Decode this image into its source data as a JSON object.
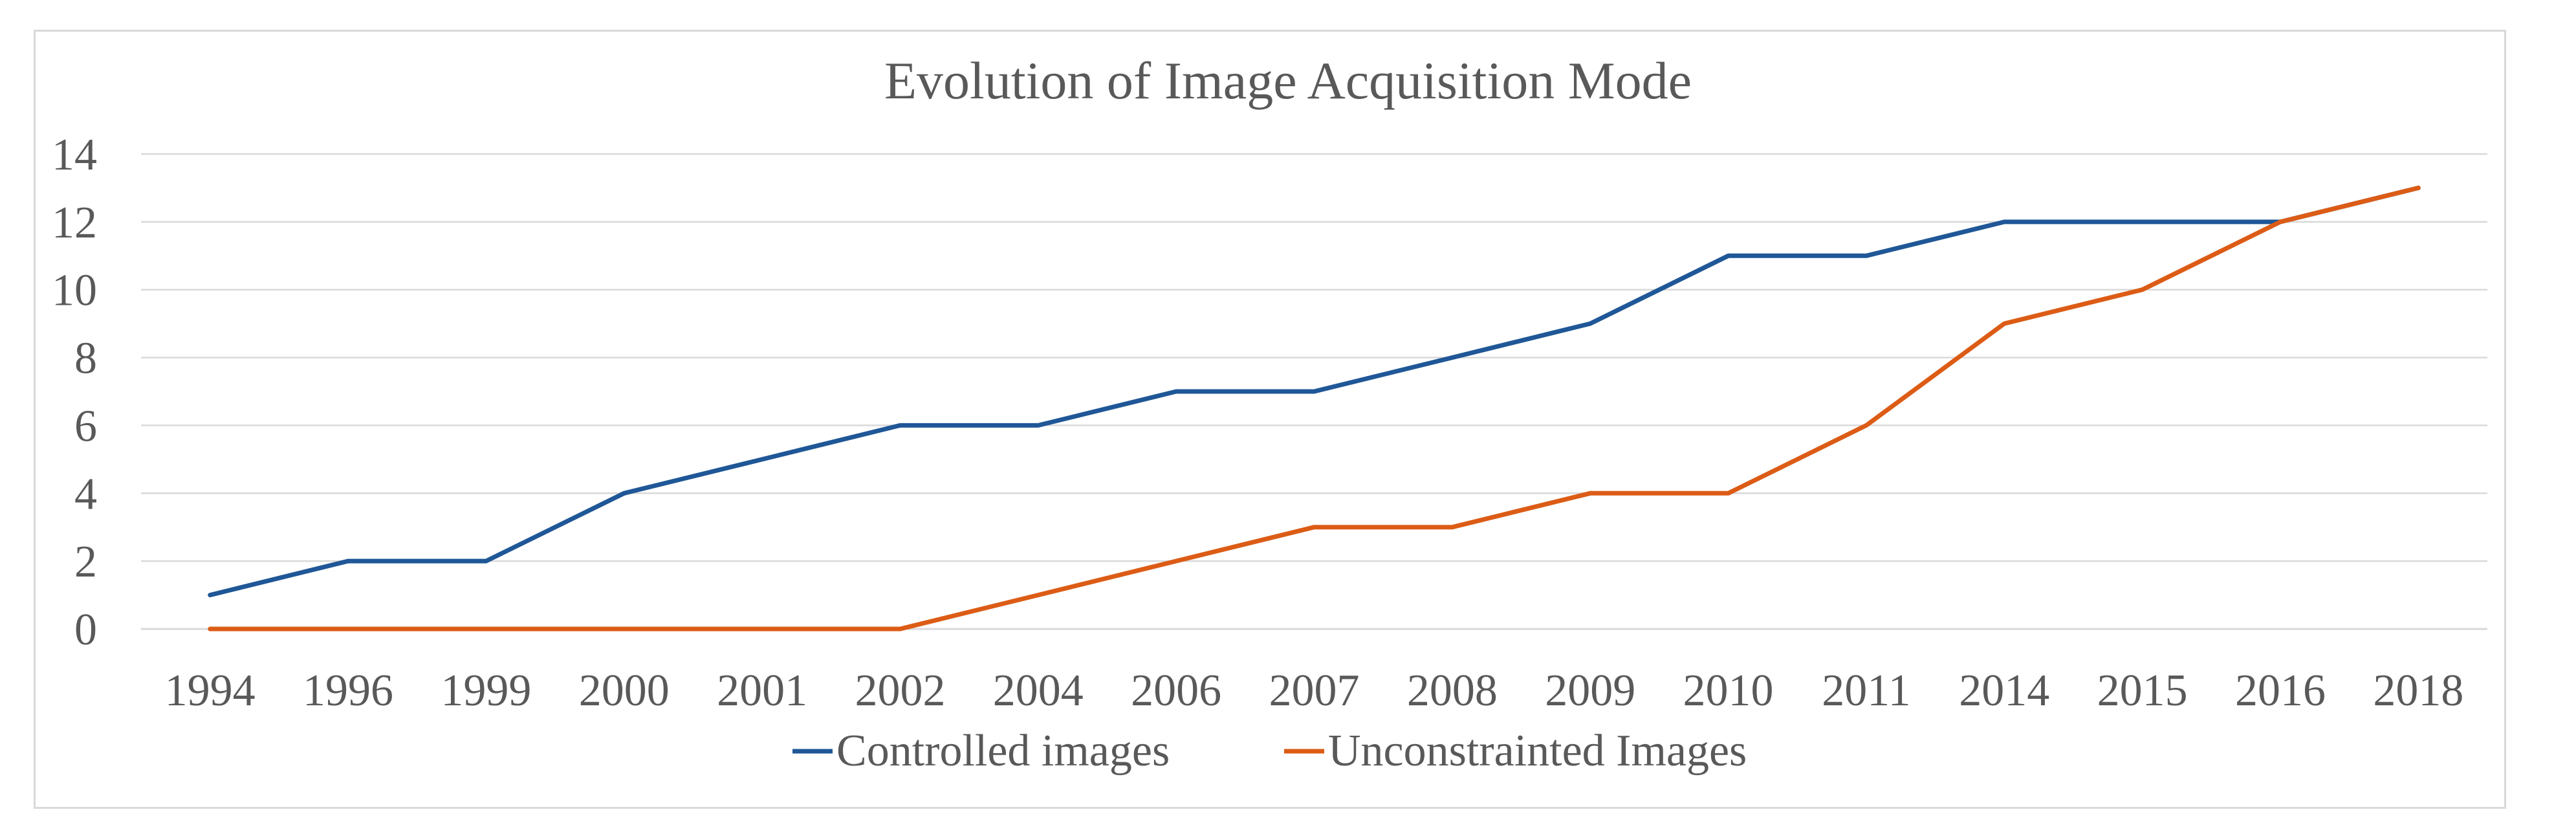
{
  "chart_data": {
    "type": "line",
    "title": "Evolution of Image Acquisition Mode",
    "xlabel": "",
    "ylabel": "",
    "ylim": [
      0,
      14
    ],
    "yticks": [
      "0",
      "2",
      "4",
      "6",
      "8",
      "10",
      "12",
      "14"
    ],
    "grid": true,
    "legend_position": "bottom",
    "categories": [
      "1994",
      "1996",
      "1999",
      "2000",
      "2001",
      "2002",
      "2004",
      "2006",
      "2007",
      "2008",
      "2009",
      "2010",
      "2011",
      "2014",
      "2015",
      "2016",
      "2018"
    ],
    "series": [
      {
        "name": "Controlled images",
        "color": "#1f5797",
        "values": [
          1,
          2,
          2,
          4,
          5,
          6,
          6,
          7,
          7,
          8,
          9,
          11,
          11,
          12,
          12,
          12,
          13
        ]
      },
      {
        "name": "Unconstrainted Images",
        "color": "#dc5c16",
        "values": [
          0,
          0,
          0,
          0,
          0,
          0,
          1,
          2,
          3,
          3,
          4,
          4,
          6,
          9,
          10,
          12,
          13
        ]
      }
    ]
  }
}
